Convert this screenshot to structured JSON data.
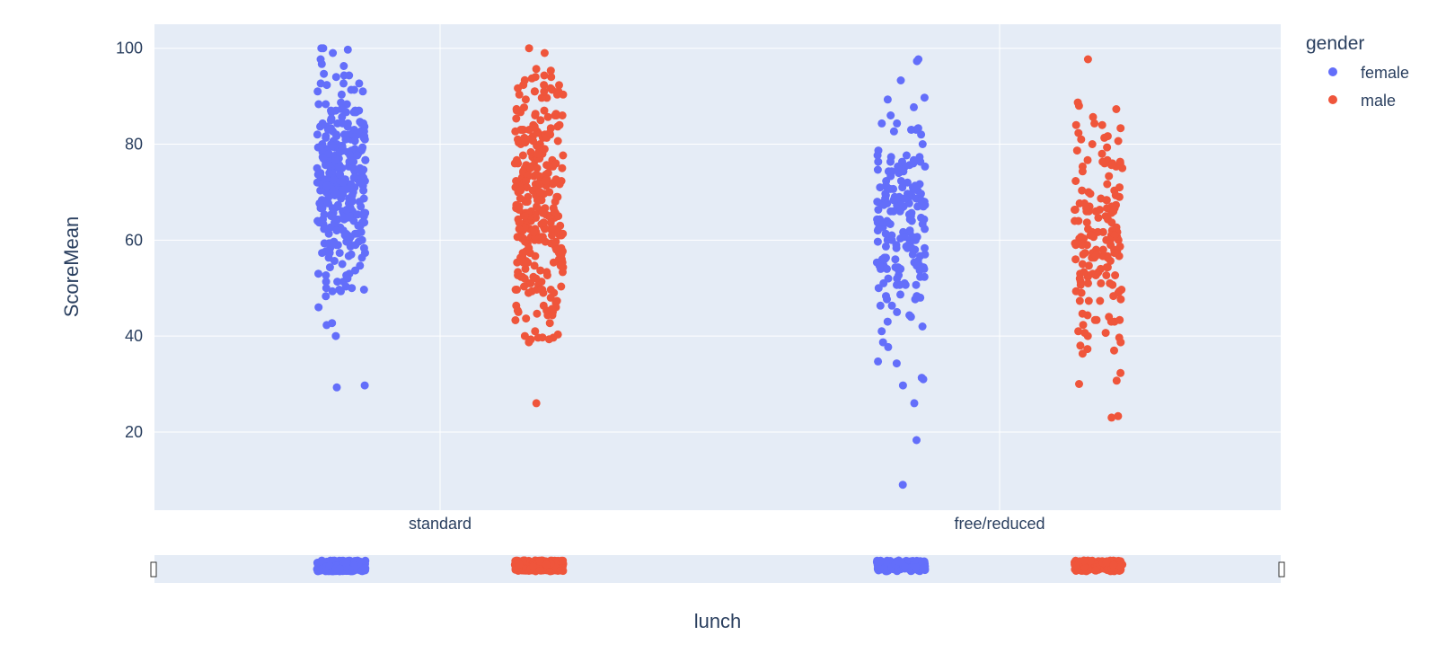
{
  "chart_data": {
    "type": "scatter",
    "subtype": "strip",
    "xlabel": "lunch",
    "ylabel": "ScoreMean",
    "categories": [
      "standard",
      "free/reduced"
    ],
    "yticks": [
      20,
      40,
      60,
      80,
      100
    ],
    "ylim": [
      3.7,
      105
    ],
    "grid": true,
    "legend": {
      "title": "gender",
      "position": "top-right"
    },
    "rangeslider": true,
    "series": [
      {
        "name": "female",
        "color": "#636efa",
        "groups": [
          {
            "category": "standard",
            "min": 29.3,
            "max": 100,
            "bulk_low": 55,
            "bulk_high": 90,
            "approx_count": 330,
            "outliers": [
              29.7,
              29.3,
              40,
              42.3,
              42.7,
              46,
              48.3,
              99,
              99.7,
              100,
              100,
              97.7,
              96.7,
              96.3
            ]
          },
          {
            "category": "free/reduced",
            "min": 9,
            "max": 97.7,
            "bulk_low": 48,
            "bulk_high": 80,
            "approx_count": 190,
            "outliers": [
              9,
              18.3,
              26,
              29.7,
              31,
              31.3,
              34.3,
              34.7,
              37.7,
              38.7,
              41,
              42,
              44,
              93.3,
              97.3,
              97.7,
              89.3,
              89.7,
              87.7,
              86
            ]
          }
        ]
      },
      {
        "name": "male",
        "color": "#ef553b",
        "groups": [
          {
            "category": "standard",
            "min": 26,
            "max": 100,
            "bulk_low": 45,
            "bulk_high": 90,
            "approx_count": 310,
            "outliers": [
              26,
              38.7,
              39.3,
              39.7,
              100,
              99,
              94,
              94,
              93.7,
              92.3,
              42.7,
              43.3
            ]
          },
          {
            "category": "free/reduced",
            "min": 23,
            "max": 97.7,
            "bulk_low": 42,
            "bulk_high": 80,
            "approx_count": 170,
            "outliers": [
              23,
              23.3,
              30,
              30.7,
              32.3,
              37.3,
              38,
              38.7,
              84,
              87.3,
              88,
              88.7,
              97.7
            ]
          }
        ]
      }
    ]
  }
}
